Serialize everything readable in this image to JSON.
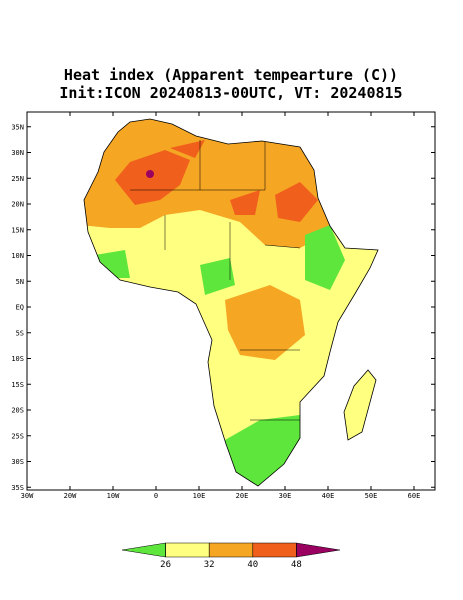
{
  "title": [
    "Heat index (Apparent tempearture (C))",
    "Init:ICON 20240813-00UTC, VT: 20240815"
  ],
  "map": {
    "lat_ticks": [
      {
        "value": 35,
        "label": "35N"
      },
      {
        "value": 30,
        "label": "30N"
      },
      {
        "value": 25,
        "label": "25N"
      },
      {
        "value": 20,
        "label": "20N"
      },
      {
        "value": 15,
        "label": "15N"
      },
      {
        "value": 10,
        "label": "10N"
      },
      {
        "value": 5,
        "label": "5N"
      },
      {
        "value": 0,
        "label": "EQ"
      },
      {
        "value": -5,
        "label": "5S"
      },
      {
        "value": -10,
        "label": "10S"
      },
      {
        "value": -15,
        "label": "15S"
      },
      {
        "value": -20,
        "label": "20S"
      },
      {
        "value": -25,
        "label": "25S"
      },
      {
        "value": -30,
        "label": "30S"
      },
      {
        "value": -35,
        "label": "35S"
      }
    ],
    "lon_ticks": [
      {
        "value": -30,
        "label": "30W"
      },
      {
        "value": -20,
        "label": "20W"
      },
      {
        "value": -10,
        "label": "10W"
      },
      0,
      {
        "value": 10,
        "label": "10E"
      },
      {
        "value": 20,
        "label": "20E"
      },
      {
        "value": 30,
        "label": "30E"
      },
      {
        "value": 40,
        "label": "40E"
      },
      {
        "value": 50,
        "label": "50E"
      },
      {
        "value": 60,
        "label": "60E"
      }
    ]
  },
  "colorbar": {
    "ticks": [
      26,
      32,
      40,
      48
    ],
    "colors": [
      "#5ee63c",
      "#ffff80",
      "#f5a623",
      "#f0601c",
      "#9a0060"
    ]
  }
}
